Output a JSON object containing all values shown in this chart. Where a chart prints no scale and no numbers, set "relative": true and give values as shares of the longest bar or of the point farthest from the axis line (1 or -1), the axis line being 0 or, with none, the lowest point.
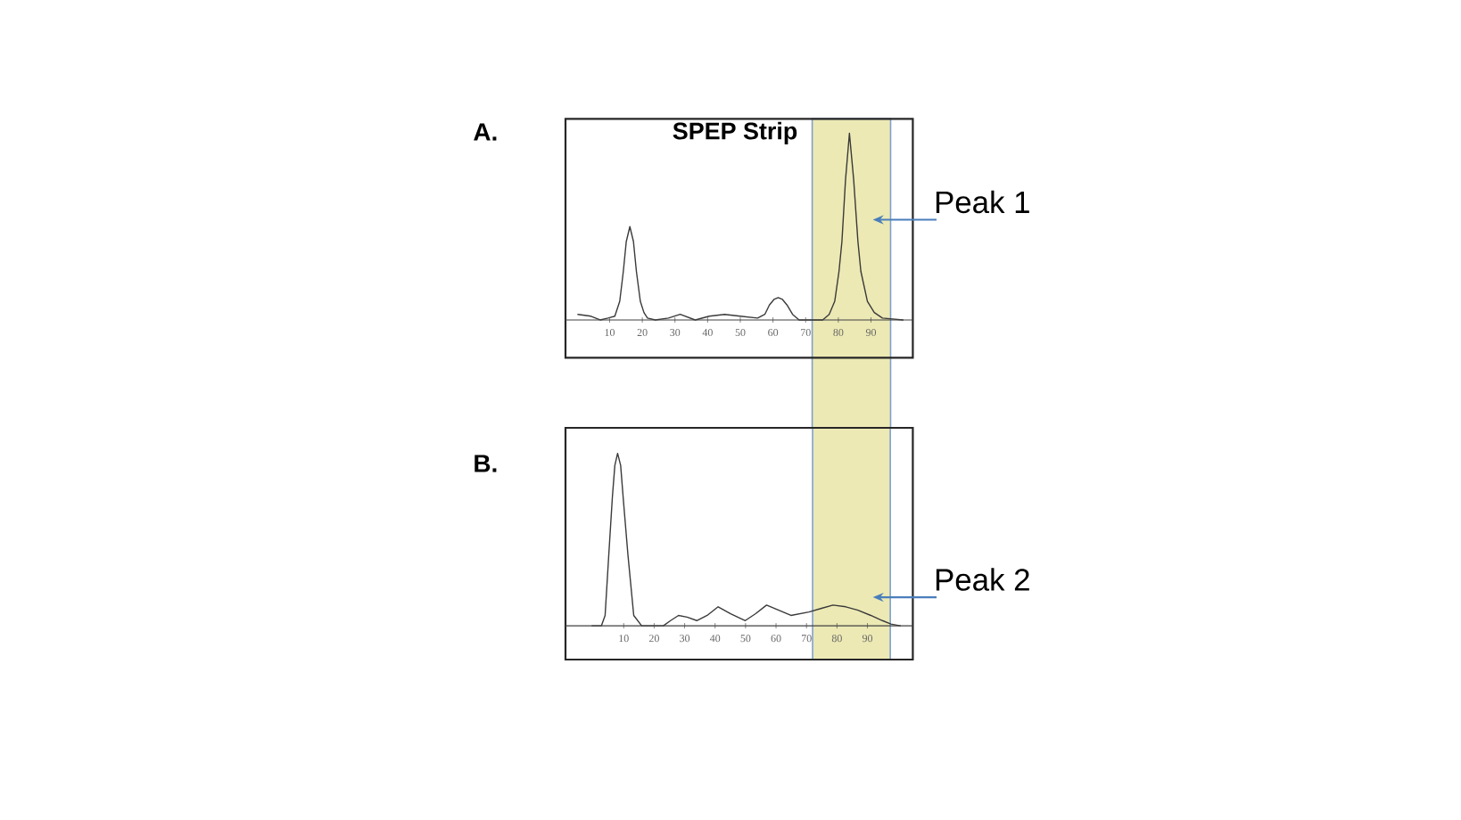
{
  "chart_data": [
    {
      "type": "line",
      "title": "A.",
      "subtitle": "SPEP Strip",
      "relative": true,
      "color": "#3a3a3a",
      "x": [
        0.3,
        4.3,
        7.1,
        9.5,
        11.6,
        13.1,
        14.2,
        15.1,
        16.2,
        17.3,
        18.2,
        19.4,
        20.5,
        21.6,
        24,
        28,
        31.6,
        36.2,
        40.5,
        45.2,
        50,
        55.3,
        57.5,
        58.9,
        60.3,
        61.6,
        62.9,
        64.3,
        66,
        68,
        72,
        75.2,
        77.2,
        78.9,
        80.2,
        81.1,
        82.2,
        83.4,
        84.7,
        86,
        86.9,
        88.9,
        91,
        93.5,
        99.8
      ],
      "values": [
        0.03,
        0.02,
        0,
        0.01,
        0.02,
        0.1,
        0.26,
        0.42,
        0.5,
        0.42,
        0.26,
        0.1,
        0.04,
        0.01,
        0,
        0.01,
        0.03,
        0,
        0.02,
        0.03,
        0.02,
        0.01,
        0.03,
        0.08,
        0.11,
        0.12,
        0.11,
        0.08,
        0.03,
        0,
        0,
        0,
        0.03,
        0.1,
        0.26,
        0.42,
        0.75,
        1,
        0.75,
        0.42,
        0.26,
        0.1,
        0.04,
        0.01,
        0
      ],
      "xlim": [
        -3.5,
        102.8
      ],
      "xticks": [
        10,
        20,
        30,
        40,
        50,
        60,
        70,
        80,
        90
      ],
      "bands": [
        {
          "axis": "x",
          "from": 72,
          "to": 96,
          "color": "#ece9b4"
        }
      ],
      "annotations": [
        "Peak 1"
      ]
    },
    {
      "type": "line",
      "title": "B.",
      "relative": true,
      "color": "#3a3a3a",
      "x": [
        -0.4,
        2.7,
        3.9,
        5.1,
        6.3,
        7.1,
        8,
        9,
        9.8,
        11.4,
        13.3,
        15.9,
        19,
        23,
        25.4,
        28,
        30.8,
        34,
        37.4,
        41,
        45.1,
        49.9,
        53.3,
        56.9,
        60.9,
        64.9,
        70.8,
        74.7,
        78.7,
        82.9,
        86.9,
        91.1,
        94.9,
        97.7,
        100.8
      ],
      "values": [
        0,
        0,
        0.06,
        0.41,
        0.75,
        0.93,
        1,
        0.93,
        0.75,
        0.41,
        0.06,
        0,
        0,
        0,
        0.03,
        0.06,
        0.05,
        0.03,
        0.06,
        0.11,
        0.07,
        0.03,
        0.07,
        0.12,
        0.09,
        0.06,
        0.08,
        0.1,
        0.12,
        0.11,
        0.09,
        0.06,
        0.03,
        0.01,
        0
      ],
      "xlim": [
        -9.1,
        104.9
      ],
      "xticks": [
        10,
        20,
        30,
        40,
        50,
        60,
        70,
        80,
        90
      ],
      "bands": [
        {
          "axis": "x",
          "from": 72,
          "to": 97.5,
          "color": "#ece9b4"
        }
      ],
      "annotations": [
        "Peak 2"
      ]
    }
  ]
}
